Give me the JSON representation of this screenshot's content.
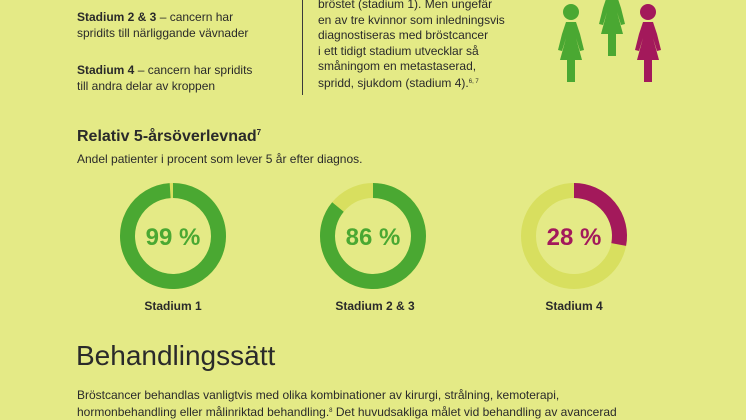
{
  "stages": {
    "stage23_bold": "Stadium 2 & 3",
    "stage23_text": " – cancern har",
    "stage23_line2": "spridits till närliggande vävnader",
    "stage4_bold": "Stadium 4",
    "stage4_text": " – cancern har spridits",
    "stage4_line2": "till andra delar av kroppen"
  },
  "middle": {
    "lines": [
      "bröstet (stadium 1). Men ungefär",
      "en av tre kvinnor som inledningsvis",
      "diagnostiseras med bröstcancer",
      "i ett tidigt stadium utvecklar så",
      "småningom en metastaserad,",
      "spridd, sjukdom (stadium 4)."
    ],
    "ref": "6, 7"
  },
  "colors": {
    "green": "#4aa832",
    "light": "#d8df5f",
    "purple": "#a3195b",
    "background": "#e4ea86"
  },
  "survival": {
    "title": "Relativ 5-årsöverlevnad",
    "title_ref": "7",
    "subtitle": "Andel patienter i procent som lever 5 år efter diagnos."
  },
  "chart_data": [
    {
      "type": "pie",
      "label": "Stadium 1",
      "value": 99,
      "value_text": "99 %",
      "color": "#4aa832"
    },
    {
      "type": "pie",
      "label": "Stadium 2 & 3",
      "value": 86,
      "value_text": "86 %",
      "color": "#4aa832"
    },
    {
      "type": "pie",
      "label": "Stadium 4",
      "value": 28,
      "value_text": "28 %",
      "color": "#a3195b"
    }
  ],
  "treatment": {
    "heading": "Behandlingssätt",
    "line1": "Bröstcancer behandlas vanligtvis med olika kombinationer av kirurgi, strålning, kemoterapi,",
    "line2_a": "hormonbehandling eller målinriktad behandling.",
    "line2_ref": "8",
    "line2_b": " Det huvudsakliga målet vid behandling av avancerad"
  }
}
